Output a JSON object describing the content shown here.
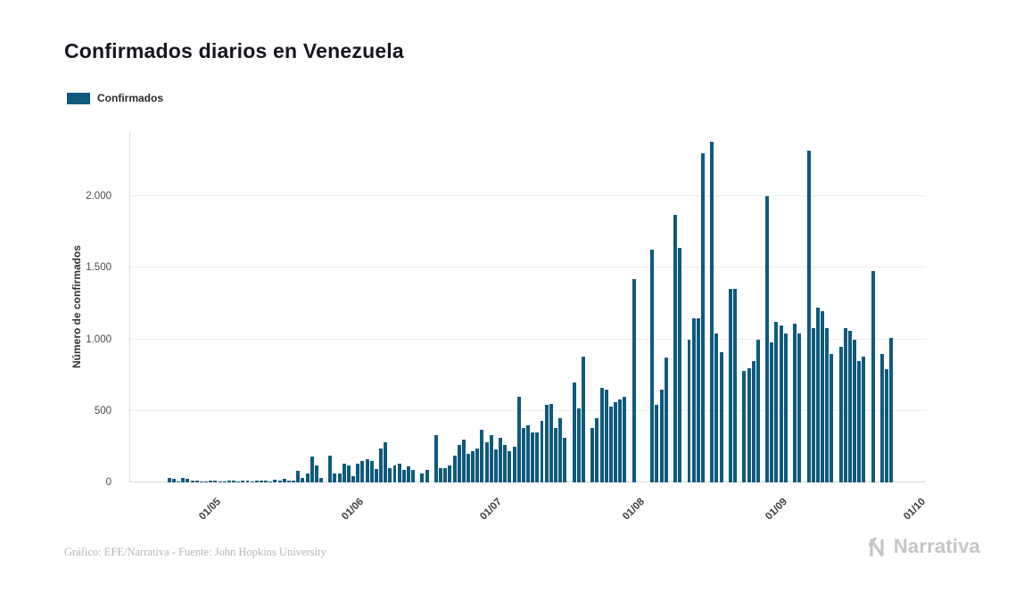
{
  "header": {
    "title": "Confirmados diarios en Venezuela"
  },
  "legend": {
    "label": "Confirmados"
  },
  "footer": {
    "credit": "Gráfico: EFE/Narrativa - Fuente: John Hopkins University",
    "brand": "Narrativa"
  },
  "colors": {
    "bar": "#0e5a7e",
    "grid": "#ededed",
    "axis": "#d9d9d9",
    "brand_gray": "#c6c6c6"
  },
  "chart_data": {
    "type": "bar",
    "title": "Confirmados diarios en Venezuela",
    "series_name": "Confirmados",
    "xlabel": "",
    "ylabel": "Número de confirmados",
    "ylim": [
      0,
      2450
    ],
    "grid": true,
    "legend_position": "top-left",
    "yticks": [
      {
        "value": 0,
        "label": "0"
      },
      {
        "value": 500,
        "label": "500"
      },
      {
        "value": 1000,
        "label": "1.000"
      },
      {
        "value": 1500,
        "label": "1.500"
      },
      {
        "value": 2000,
        "label": "2.000"
      }
    ],
    "xticks": [
      {
        "label": "01/05",
        "day": 19
      },
      {
        "label": "01/06",
        "day": 50
      },
      {
        "label": "01/07",
        "day": 80
      },
      {
        "label": "01/08",
        "day": 111
      },
      {
        "label": "01/09",
        "day": 142
      },
      {
        "label": "01/10",
        "day": 172
      }
    ],
    "x_unit": "day",
    "values": [
      0,
      0,
      0,
      0,
      0,
      0,
      0,
      0,
      30,
      25,
      5,
      30,
      25,
      12,
      10,
      8,
      6,
      10,
      12,
      8,
      6,
      10,
      12,
      8,
      15,
      10,
      6,
      12,
      15,
      10,
      8,
      20,
      12,
      25,
      10,
      15,
      80,
      30,
      60,
      180,
      120,
      30,
      0,
      185,
      60,
      65,
      130,
      120,
      45,
      130,
      150,
      160,
      150,
      95,
      240,
      280,
      100,
      120,
      130,
      90,
      110,
      90,
      0,
      60,
      85,
      0,
      330,
      100,
      100,
      120,
      190,
      260,
      300,
      200,
      220,
      240,
      370,
      280,
      330,
      230,
      310,
      260,
      220,
      250,
      600,
      380,
      400,
      350,
      350,
      430,
      540,
      550,
      380,
      450,
      310,
      0,
      700,
      520,
      880,
      0,
      380,
      450,
      660,
      650,
      530,
      560,
      580,
      600,
      0,
      1420,
      0,
      0,
      0,
      1630,
      540,
      650,
      870,
      0,
      1870,
      1640,
      0,
      1000,
      1150,
      1150,
      2300,
      0,
      2380,
      1040,
      910,
      0,
      1350,
      1350,
      0,
      780,
      800,
      850,
      1000,
      0,
      2000,
      980,
      1120,
      1100,
      1040,
      0,
      1110,
      1040,
      0,
      2320,
      1080,
      1220,
      1200,
      1080,
      900,
      0,
      950,
      1080,
      1060,
      1000,
      850,
      880,
      0,
      1480,
      0,
      900,
      790,
      1010,
      0,
      0,
      0,
      0,
      0,
      0,
      0
    ]
  }
}
